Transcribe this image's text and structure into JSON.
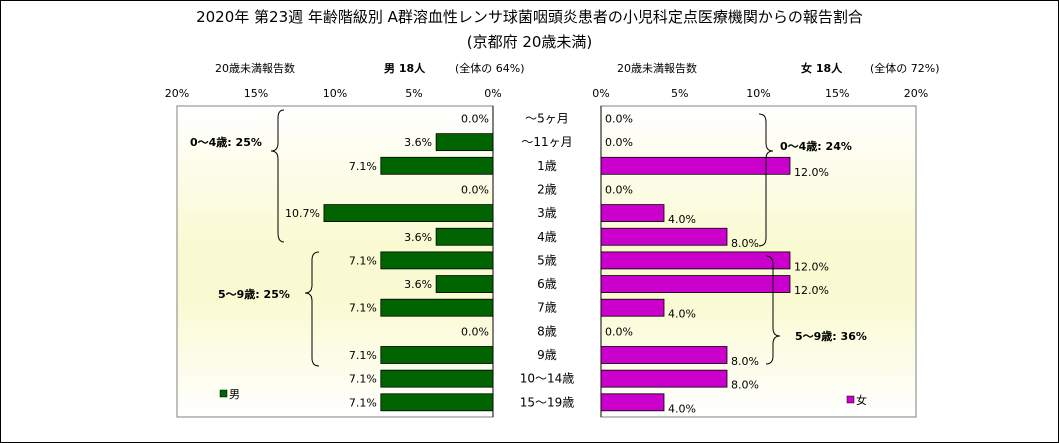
{
  "title": "2020年 第23週 年齢階級別 A群溶血性レンサ球菌咽頭炎患者の小児科定点医療機関からの報告割合",
  "subtitle": "(京都府 20歳未満)",
  "male_header": {
    "count_label": "20歳未満報告数",
    "sex_count": "男  18人",
    "share": "(全体の   64%)"
  },
  "female_header": {
    "count_label": "20歳未満報告数",
    "sex_count": "女  18人",
    "share": "(全体の   72%)"
  },
  "chart_data": {
    "type": "bar",
    "orientation": "horizontal-butterfly",
    "categories": [
      "～5ヶ月",
      "～11ヶ月",
      "1歳",
      "2歳",
      "3歳",
      "4歳",
      "5歳",
      "6歳",
      "7歳",
      "8歳",
      "9歳",
      "10～14歳",
      "15～19歳"
    ],
    "xlim": [
      0,
      20
    ],
    "ticks": [
      "0%",
      "5%",
      "10%",
      "15%",
      "20%"
    ],
    "series": [
      {
        "name": "男",
        "color": "#006400",
        "values": [
          0.0,
          3.6,
          7.1,
          0.0,
          10.7,
          3.6,
          7.1,
          3.6,
          7.1,
          0.0,
          7.1,
          7.1,
          7.1
        ],
        "labels": [
          "0.0%",
          "3.6%",
          "7.1%",
          "0.0%",
          "10.7%",
          "3.6%",
          "7.1%",
          "3.6%",
          "7.1%",
          "0.0%",
          "7.1%",
          "7.1%",
          "7.1%"
        ]
      },
      {
        "name": "女",
        "color": "#cc00cc",
        "values": [
          0.0,
          0.0,
          12.0,
          0.0,
          4.0,
          8.0,
          12.0,
          12.0,
          4.0,
          0.0,
          8.0,
          8.0,
          4.0
        ],
        "labels": [
          "0.0%",
          "0.0%",
          "12.0%",
          "0.0%",
          "4.0%",
          "8.0%",
          "12.0%",
          "12.0%",
          "4.0%",
          "0.0%",
          "8.0%",
          "8.0%",
          "4.0%"
        ]
      }
    ],
    "annotations": {
      "male_0_4": "0～4歳: 25%",
      "male_5_9": "5～9歳: 25%",
      "female_0_4": "0～4歳: 24%",
      "female_5_9": "5～9歳: 36%"
    }
  }
}
